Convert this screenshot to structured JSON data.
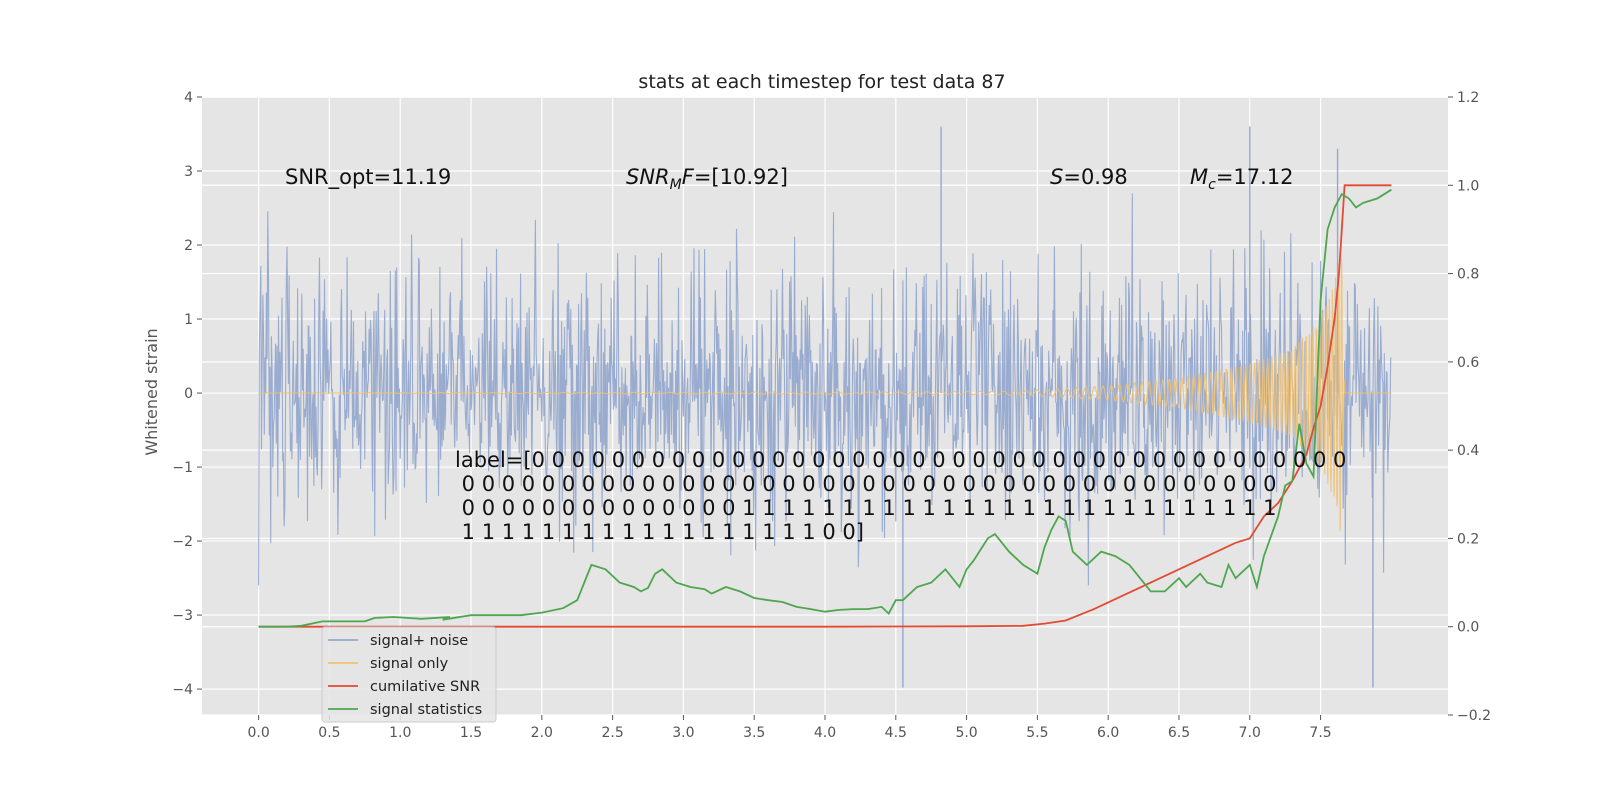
{
  "chart_data": {
    "type": "line",
    "title": "stats at each timestep for test data 87",
    "ylabel": "Whitened strain",
    "xlabel": "",
    "xlim": [
      -0.4,
      8.4
    ],
    "ylim": [
      -4.35,
      4.0
    ],
    "y2lim": [
      -0.2,
      1.2
    ],
    "grid": true,
    "legend_position": "bottom-left",
    "x_ticks": [
      "0.0",
      "0.5",
      "1.0",
      "1.5",
      "2.0",
      "2.5",
      "3.0",
      "3.5",
      "4.0",
      "4.5",
      "5.0",
      "5.5",
      "6.0",
      "6.5",
      "7.0",
      "7.5"
    ],
    "y_ticks": [
      "4",
      "3",
      "2",
      "1",
      "0",
      "−1",
      "−2",
      "−3",
      "−4"
    ],
    "y2_ticks": [
      "1.2",
      "1.0",
      "0.8",
      "0.6",
      "0.4",
      "0.2",
      "0.0",
      "−0.2"
    ],
    "annotations": {
      "snr_opt": "SNR_opt=11.19",
      "snr_mf_sym": "SNR",
      "snr_mf_sub": "M",
      "snr_mf_sym2": "F",
      "snr_mf_value": "=[10.92]",
      "s_sym": "S",
      "s_value": "=0.98",
      "mc_sym": "M",
      "mc_sub": "c",
      "mc_value": "=17.12"
    },
    "label_lines": [
      "label=[0 0 0 0 0 0 0 0 0 0 0 0 0 0 0 0 0 0 0 0 0 0 0 0 0 0 0 0 0 0 0 0 0 0 0 0 0 0 0 0 0",
      " 0 0 0 0 0 0 0 0 0 0 0 0 0 0 0 0 0 0 0 0 0 0 0 0 0 0 0 0 0 0 0 0 0 0 0 0 0 0 0 0 0",
      " 0 0 0 0 0 0 0 0 0 0 0 0 0 0 1 1 1 1 1 1 1 1 1 1 1 1 1 1 1 1 1 1 1 1 1 1 1 1 1 1 1",
      " 1 1 1 1 1 1 1 1 1 1 1 1 1 1 1 1 1 1 0 0]"
    ],
    "legend": [
      {
        "label": "signal+ noise",
        "color": "#95a8ce"
      },
      {
        "label": "signal only",
        "color": "#f0c070"
      },
      {
        "label": "cumilative SNR",
        "color": "#e24a33"
      },
      {
        "label": "signal statistics",
        "color": "#4ea64e"
      }
    ],
    "series": [
      {
        "name": "signal+ noise",
        "axis": "left",
        "x_range": [
          0.0,
          8.0
        ],
        "typical_envelope": [
          -1.4,
          1.6
        ],
        "typical_peak_range": [
          -2.6,
          3.2
        ],
        "extreme_min": -3.98,
        "extreme_max": 3.6
      },
      {
        "name": "signal only",
        "axis": "left",
        "x_range": [
          0.0,
          7.67
        ],
        "chirp_envelope": [
          [
            0.0,
            0.0
          ],
          [
            5.2,
            0.02
          ],
          [
            5.6,
            0.05
          ],
          [
            6.0,
            0.1
          ],
          [
            6.5,
            0.2
          ],
          [
            7.0,
            0.4
          ],
          [
            7.3,
            0.6
          ],
          [
            7.5,
            1.0
          ],
          [
            7.6,
            1.5
          ],
          [
            7.65,
            2.0
          ],
          [
            7.67,
            0.0
          ]
        ],
        "flat_after": [
          7.67,
          8.0
        ]
      },
      {
        "name": "cumilative SNR",
        "axis": "right",
        "x": [
          0.0,
          1.0,
          2.0,
          3.0,
          4.0,
          5.0,
          5.4,
          5.55,
          5.7,
          5.9,
          6.1,
          6.3,
          6.5,
          6.7,
          6.9,
          7.0,
          7.1,
          7.2,
          7.3,
          7.4,
          7.45,
          7.5,
          7.55,
          7.6,
          7.63,
          7.66,
          7.67,
          7.68,
          8.0
        ],
        "values": [
          0.0,
          0.0,
          0.0,
          0.0,
          0.0,
          0.001,
          0.002,
          0.007,
          0.014,
          0.04,
          0.07,
          0.1,
          0.13,
          0.16,
          0.19,
          0.2,
          0.25,
          0.28,
          0.33,
          0.39,
          0.45,
          0.5,
          0.59,
          0.7,
          0.8,
          0.95,
          1.0,
          1.0,
          1.0
        ]
      },
      {
        "name": "signal statistics",
        "axis": "right",
        "x": [
          0.0,
          0.2,
          0.3,
          0.45,
          0.55,
          0.75,
          0.82,
          0.95,
          1.05,
          1.15,
          1.35,
          1.3,
          1.5,
          1.75,
          1.85,
          2.0,
          2.15,
          2.25,
          2.35,
          2.45,
          2.55,
          2.65,
          2.7,
          2.75,
          2.8,
          2.85,
          2.95,
          3.05,
          3.15,
          3.2,
          3.3,
          3.4,
          3.5,
          3.6,
          3.7,
          3.8,
          3.9,
          4.0,
          4.1,
          4.2,
          4.3,
          4.4,
          4.45,
          4.5,
          4.55,
          4.65,
          4.75,
          4.85,
          4.95,
          5.0,
          5.05,
          5.15,
          5.2,
          5.3,
          5.4,
          5.5,
          5.55,
          5.6,
          5.65,
          5.7,
          5.75,
          5.85,
          5.95,
          6.05,
          6.15,
          6.25,
          6.3,
          6.4,
          6.5,
          6.55,
          6.65,
          6.7,
          6.8,
          6.85,
          6.9,
          7.0,
          7.05,
          7.1,
          7.2,
          7.25,
          7.3,
          7.35,
          7.4,
          7.45,
          7.5,
          7.55,
          7.6,
          7.65,
          7.7,
          7.75,
          7.8,
          7.9,
          8.0
        ],
        "values": [
          0.0,
          0.0,
          0.002,
          0.012,
          0.012,
          0.012,
          0.02,
          0.022,
          0.02,
          0.018,
          0.022,
          0.016,
          0.026,
          0.026,
          0.026,
          0.032,
          0.042,
          0.06,
          0.14,
          0.13,
          0.1,
          0.09,
          0.08,
          0.088,
          0.12,
          0.13,
          0.1,
          0.09,
          0.085,
          0.075,
          0.09,
          0.08,
          0.065,
          0.06,
          0.056,
          0.045,
          0.04,
          0.034,
          0.038,
          0.04,
          0.04,
          0.045,
          0.03,
          0.06,
          0.06,
          0.09,
          0.1,
          0.13,
          0.09,
          0.13,
          0.15,
          0.2,
          0.21,
          0.17,
          0.14,
          0.12,
          0.18,
          0.22,
          0.25,
          0.24,
          0.17,
          0.14,
          0.17,
          0.16,
          0.14,
          0.1,
          0.08,
          0.08,
          0.11,
          0.09,
          0.12,
          0.1,
          0.09,
          0.14,
          0.11,
          0.14,
          0.09,
          0.16,
          0.25,
          0.32,
          0.33,
          0.46,
          0.37,
          0.34,
          0.74,
          0.9,
          0.95,
          0.98,
          0.97,
          0.95,
          0.96,
          0.97,
          0.99
        ]
      }
    ]
  }
}
